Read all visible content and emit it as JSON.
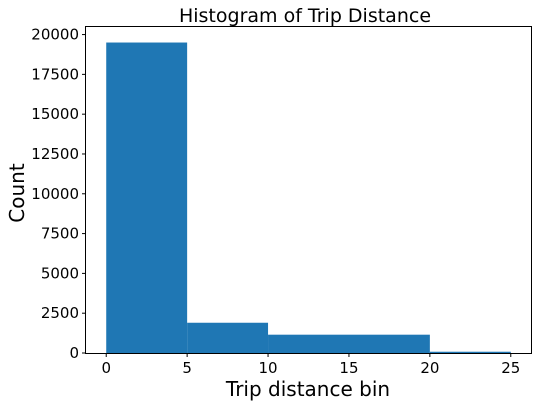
{
  "chart_data": {
    "type": "bar",
    "title": "Histogram of Trip Distance",
    "xlabel": "Trip distance bin",
    "ylabel": "Count",
    "bins": [
      {
        "x0": 0,
        "x1": 5,
        "count": 19500
      },
      {
        "x0": 5,
        "x1": 10,
        "count": 1900
      },
      {
        "x0": 10,
        "x1": 20,
        "count": 1150
      },
      {
        "x0": 20,
        "x1": 25,
        "count": 80
      }
    ],
    "xlim": [
      -1.25,
      26.25
    ],
    "ylim": [
      0,
      20475
    ],
    "xticks": [
      0,
      5,
      10,
      15,
      20,
      25
    ],
    "xtick_labels": [
      "0",
      "5",
      "10",
      "15",
      "20",
      "25"
    ],
    "yticks": [
      0,
      2500,
      5000,
      7500,
      10000,
      12500,
      15000,
      17500,
      20000
    ],
    "ytick_labels": [
      "0",
      "2500",
      "5000",
      "7500",
      "10000",
      "12500",
      "15000",
      "17500",
      "20000"
    ],
    "bar_color": "#1f77b4",
    "grid": false,
    "legend": "none"
  }
}
